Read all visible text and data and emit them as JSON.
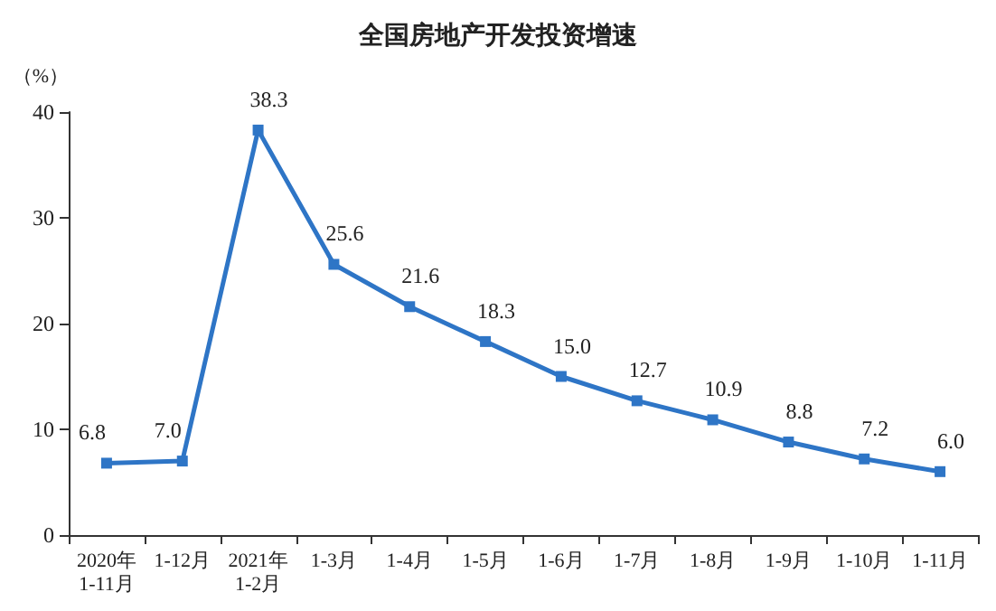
{
  "chart_data": {
    "type": "line",
    "title": "全国房地产开发投资增速",
    "ylabel": "（%）",
    "categories": [
      "2020年\n1-11月",
      "1-12月",
      "2021年\n1-2月",
      "1-3月",
      "1-4月",
      "1-5月",
      "1-6月",
      "1-7月",
      "1-8月",
      "1-9月",
      "1-10月",
      "1-11月"
    ],
    "series": [
      {
        "color": "#2e75c6",
        "values": [
          6.8,
          7.0,
          38.3,
          25.6,
          21.6,
          18.3,
          15.0,
          12.7,
          10.9,
          8.8,
          7.2,
          6.0
        ],
        "value_labels": [
          "6.8",
          "7.0",
          "38.3",
          "25.6",
          "21.6",
          "18.3",
          "15.0",
          "12.7",
          "10.9",
          "8.8",
          "7.2",
          "6.0"
        ]
      }
    ],
    "ylim": [
      0,
      40
    ],
    "yticks": [
      0,
      10,
      20,
      30,
      40
    ],
    "grid": false,
    "marker": "square",
    "line_style": "solid"
  }
}
